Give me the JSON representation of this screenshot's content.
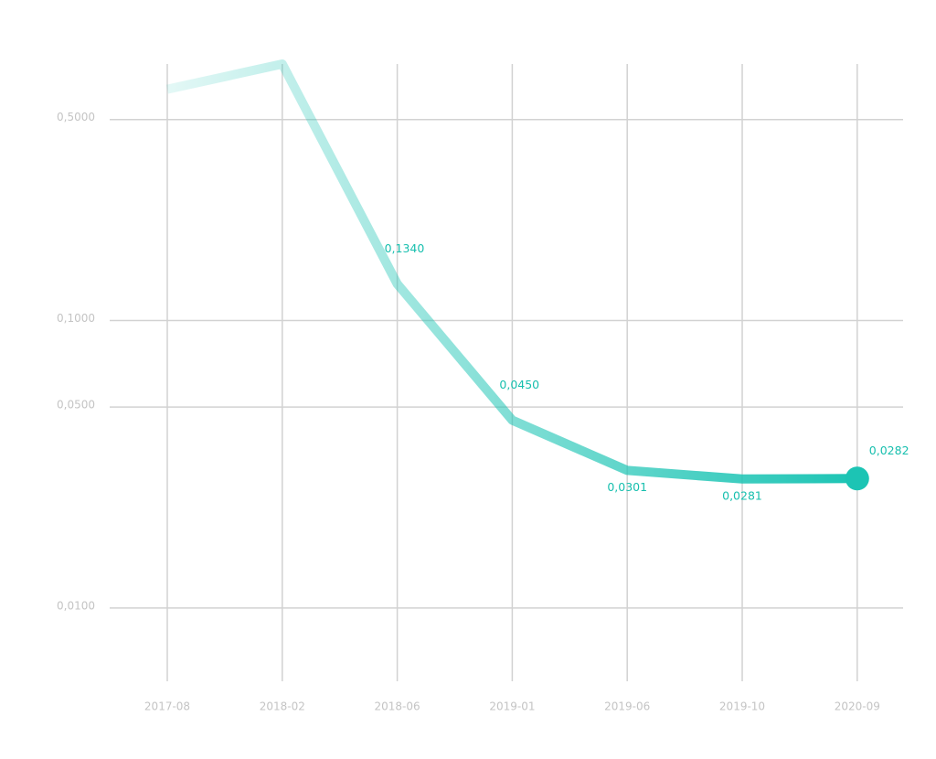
{
  "chart_data": {
    "type": "line",
    "categories": [
      "2017-08",
      "2018-02",
      "2018-06",
      "2019-01",
      "2019-06",
      "2019-10",
      "2020-09"
    ],
    "series": [
      {
        "color": "#1cc4b4",
        "values": [
          0.637,
          0.78,
          0.134,
          0.045,
          0.0301,
          0.0281,
          0.0282
        ],
        "value_labels": [
          null,
          null,
          "0,1340",
          "0,0450",
          "0,0301",
          "0,0281",
          "0,0282"
        ]
      }
    ],
    "log_scale": true,
    "ylim": [
      0.00556,
      0.78
    ],
    "yticks": [
      {
        "value": 0.01,
        "label": "0,0100"
      },
      {
        "value": 0.05,
        "label": "0,0500"
      },
      {
        "value": 0.1,
        "label": "0,1000"
      },
      {
        "value": 0.5,
        "label": "0,5000"
      }
    ],
    "grid": true
  }
}
